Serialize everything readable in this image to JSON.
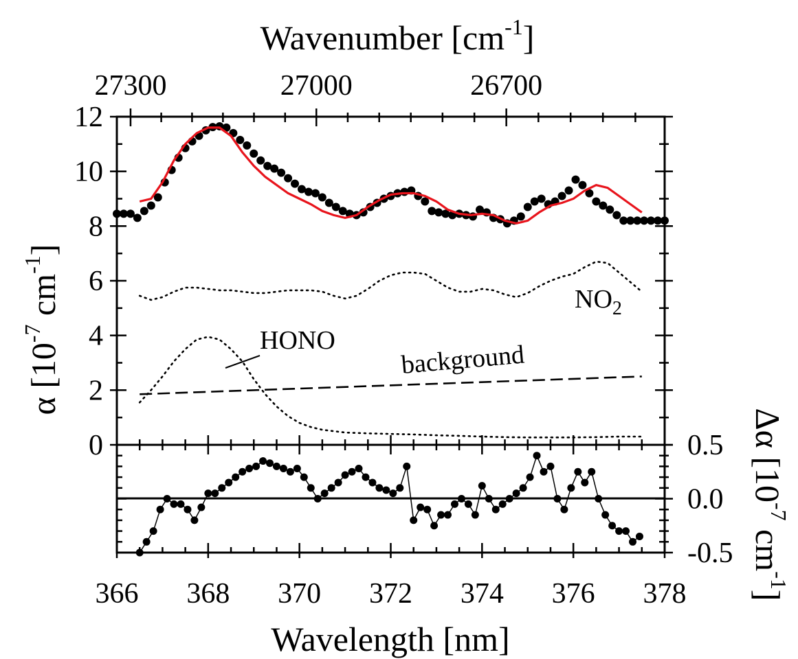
{
  "chart_data": {
    "type": "line",
    "x_axis": {
      "label": "Wavelength [nm]",
      "range": [
        366,
        378
      ],
      "ticks": [
        "366",
        "368",
        "370",
        "372",
        "374",
        "376",
        "378"
      ]
    },
    "top_axis": {
      "label_main": "Wavenumber [cm",
      "label_sup": "-1",
      "label_end": "]",
      "ticks": [
        {
          "wavenumber": 27300,
          "label": "27300"
        },
        {
          "wavenumber": 27000,
          "label": "27000"
        },
        {
          "wavenumber": 26700,
          "label": "26700"
        }
      ]
    },
    "upper_panel": {
      "ylabel_parts": {
        "a": "α [10",
        "sup1": "-7",
        "b": " cm",
        "sup2": "-1",
        "c": "]"
      },
      "ylim": [
        0,
        12
      ],
      "yticks": [
        "0",
        "2",
        "4",
        "6",
        "8",
        "10",
        "12"
      ],
      "annotations": {
        "no2_main": "NO",
        "no2_sub": "2",
        "hono": "HONO",
        "background": "background"
      },
      "series": [
        {
          "key": "measured",
          "style": "dots",
          "color": "#000000",
          "x": [
            366.0,
            366.15,
            366.3,
            366.45,
            366.6,
            366.75,
            366.9,
            367.05,
            367.2,
            367.35,
            367.5,
            367.65,
            367.8,
            367.95,
            368.1,
            368.25,
            368.4,
            368.55,
            368.7,
            368.85,
            369.0,
            369.15,
            369.3,
            369.45,
            369.6,
            369.75,
            369.9,
            370.05,
            370.2,
            370.35,
            370.5,
            370.65,
            370.8,
            370.95,
            371.1,
            371.25,
            371.4,
            371.55,
            371.7,
            371.85,
            372.0,
            372.15,
            372.3,
            372.45,
            372.6,
            372.75,
            372.9,
            373.05,
            373.2,
            373.35,
            373.5,
            373.65,
            373.8,
            373.95,
            374.1,
            374.25,
            374.4,
            374.55,
            374.7,
            374.85,
            375.0,
            375.15,
            375.3,
            375.45,
            375.6,
            375.75,
            375.9,
            376.05,
            376.2,
            376.35,
            376.5,
            376.65,
            376.8,
            376.95,
            377.1,
            377.25,
            377.4,
            377.55,
            377.7,
            377.85,
            378.0
          ],
          "y": [
            8.45,
            8.45,
            8.45,
            8.3,
            8.55,
            8.75,
            9.05,
            9.6,
            10.05,
            10.5,
            10.85,
            11.1,
            11.3,
            11.5,
            11.62,
            11.65,
            11.6,
            11.4,
            11.15,
            10.95,
            10.65,
            10.4,
            10.2,
            10.1,
            9.95,
            9.75,
            9.55,
            9.35,
            9.25,
            9.2,
            9.05,
            8.85,
            8.7,
            8.55,
            8.45,
            8.4,
            8.5,
            8.7,
            8.85,
            9.0,
            9.1,
            9.2,
            9.25,
            9.3,
            9.1,
            8.9,
            8.55,
            8.5,
            8.45,
            8.4,
            8.45,
            8.4,
            8.35,
            8.6,
            8.5,
            8.3,
            8.25,
            8.1,
            8.2,
            8.35,
            8.7,
            8.9,
            9.0,
            8.8,
            8.9,
            9.1,
            9.3,
            9.7,
            9.5,
            9.2,
            8.9,
            8.75,
            8.6,
            8.4,
            8.2,
            8.2,
            8.2,
            8.2,
            8.2,
            8.2,
            8.2
          ]
        },
        {
          "key": "fit",
          "style": "solid",
          "color": "#e8141c",
          "x": [
            366.5,
            366.75,
            367.0,
            367.25,
            367.5,
            367.75,
            368.0,
            368.25,
            368.5,
            368.75,
            369.0,
            369.25,
            369.5,
            369.75,
            370.0,
            370.25,
            370.5,
            370.75,
            371.0,
            371.25,
            371.5,
            371.75,
            372.0,
            372.25,
            372.5,
            372.75,
            373.0,
            373.25,
            373.5,
            373.75,
            374.0,
            374.25,
            374.5,
            374.75,
            375.0,
            375.25,
            375.5,
            375.75,
            376.0,
            376.25,
            376.5,
            376.75,
            377.0,
            377.25,
            377.5
          ],
          "y": [
            8.9,
            9.0,
            9.6,
            10.4,
            11.0,
            11.4,
            11.6,
            11.6,
            11.3,
            10.7,
            10.2,
            9.8,
            9.5,
            9.2,
            9.0,
            8.8,
            8.55,
            8.4,
            8.3,
            8.4,
            8.7,
            8.95,
            9.15,
            9.2,
            9.2,
            9.1,
            8.9,
            8.6,
            8.45,
            8.4,
            8.45,
            8.4,
            8.2,
            8.1,
            8.2,
            8.5,
            8.75,
            8.85,
            9.0,
            9.3,
            9.5,
            9.4,
            9.1,
            8.8,
            8.5
          ]
        },
        {
          "key": "no2",
          "style": "dotted",
          "color": "#000000",
          "x": [
            366.5,
            366.75,
            367.0,
            367.25,
            367.5,
            367.75,
            368.0,
            368.25,
            368.5,
            368.75,
            369.0,
            369.25,
            369.5,
            369.75,
            370.0,
            370.25,
            370.5,
            370.75,
            371.0,
            371.25,
            371.5,
            371.75,
            372.0,
            372.25,
            372.5,
            372.75,
            373.0,
            373.25,
            373.5,
            373.75,
            374.0,
            374.25,
            374.5,
            374.75,
            375.0,
            375.25,
            375.5,
            375.75,
            376.0,
            376.25,
            376.5,
            376.75,
            377.0,
            377.25,
            377.5
          ],
          "y": [
            5.45,
            5.3,
            5.4,
            5.6,
            5.75,
            5.75,
            5.7,
            5.65,
            5.65,
            5.6,
            5.55,
            5.55,
            5.6,
            5.65,
            5.65,
            5.65,
            5.6,
            5.45,
            5.35,
            5.45,
            5.7,
            6.0,
            6.2,
            6.3,
            6.3,
            6.25,
            6.0,
            5.75,
            5.6,
            5.6,
            5.7,
            5.65,
            5.5,
            5.4,
            5.55,
            5.8,
            6.0,
            6.15,
            6.25,
            6.5,
            6.7,
            6.65,
            6.3,
            5.95,
            5.6
          ]
        },
        {
          "key": "hono",
          "style": "dotted",
          "color": "#000000",
          "x": [
            366.5,
            366.75,
            367.0,
            367.25,
            367.5,
            367.75,
            368.0,
            368.25,
            368.5,
            368.75,
            369.0,
            369.25,
            369.5,
            369.75,
            370.0,
            370.25,
            370.5,
            370.75,
            371.0,
            371.5,
            372.0,
            372.5,
            373.0,
            373.5,
            374.0,
            374.5,
            375.0,
            375.5,
            376.0,
            376.5,
            377.0,
            377.5
          ],
          "y": [
            1.55,
            2.0,
            2.5,
            3.05,
            3.5,
            3.85,
            3.95,
            3.85,
            3.5,
            3.05,
            2.4,
            1.85,
            1.4,
            1.05,
            0.8,
            0.65,
            0.55,
            0.5,
            0.45,
            0.42,
            0.4,
            0.38,
            0.35,
            0.33,
            0.3,
            0.28,
            0.27,
            0.27,
            0.27,
            0.28,
            0.3,
            0.3
          ]
        },
        {
          "key": "background",
          "style": "dashed",
          "color": "#000000",
          "x": [
            366.5,
            377.5
          ],
          "y": [
            1.85,
            2.5
          ]
        }
      ]
    },
    "lower_panel": {
      "ylabel_parts": {
        "a": "Δα [10",
        "sup1": "-7",
        "b": " cm",
        "sup2": "-1",
        "c": "]"
      },
      "ylim": [
        -0.5,
        0.5
      ],
      "yticks": [
        "-0.5",
        "0.0",
        "0.5"
      ],
      "series": [
        {
          "key": "residual",
          "style": "dots-line",
          "color": "#000000",
          "x": [
            366.5,
            366.65,
            366.8,
            366.95,
            367.1,
            367.25,
            367.4,
            367.55,
            367.7,
            367.85,
            368.0,
            368.15,
            368.3,
            368.45,
            368.6,
            368.75,
            368.9,
            369.05,
            369.2,
            369.35,
            369.5,
            369.65,
            369.8,
            369.95,
            370.1,
            370.25,
            370.4,
            370.55,
            370.7,
            370.85,
            371.0,
            371.15,
            371.3,
            371.45,
            371.6,
            371.75,
            371.9,
            372.05,
            372.2,
            372.35,
            372.5,
            372.65,
            372.8,
            372.95,
            373.1,
            373.25,
            373.4,
            373.55,
            373.7,
            373.85,
            374.0,
            374.15,
            374.3,
            374.45,
            374.6,
            374.75,
            374.9,
            375.05,
            375.2,
            375.35,
            375.5,
            375.65,
            375.8,
            375.95,
            376.1,
            376.25,
            376.4,
            376.55,
            376.7,
            376.85,
            377.0,
            377.15,
            377.3,
            377.45
          ],
          "y": [
            -0.5,
            -0.4,
            -0.3,
            -0.1,
            0.0,
            -0.05,
            -0.05,
            -0.1,
            -0.2,
            -0.08,
            0.05,
            0.05,
            0.1,
            0.15,
            0.2,
            0.25,
            0.28,
            0.3,
            0.35,
            0.33,
            0.3,
            0.28,
            0.25,
            0.28,
            0.2,
            0.1,
            0.0,
            0.05,
            0.1,
            0.15,
            0.22,
            0.25,
            0.28,
            0.2,
            0.15,
            0.1,
            0.08,
            0.05,
            0.1,
            0.3,
            -0.2,
            -0.08,
            -0.1,
            -0.25,
            -0.15,
            -0.15,
            -0.05,
            0.0,
            -0.05,
            -0.15,
            0.12,
            0.0,
            -0.1,
            -0.05,
            0.0,
            0.05,
            0.1,
            0.2,
            0.4,
            0.25,
            0.3,
            0.0,
            -0.1,
            0.1,
            0.25,
            0.15,
            0.25,
            0.0,
            -0.15,
            -0.25,
            -0.3,
            -0.3,
            -0.4,
            -0.35
          ]
        }
      ]
    }
  }
}
